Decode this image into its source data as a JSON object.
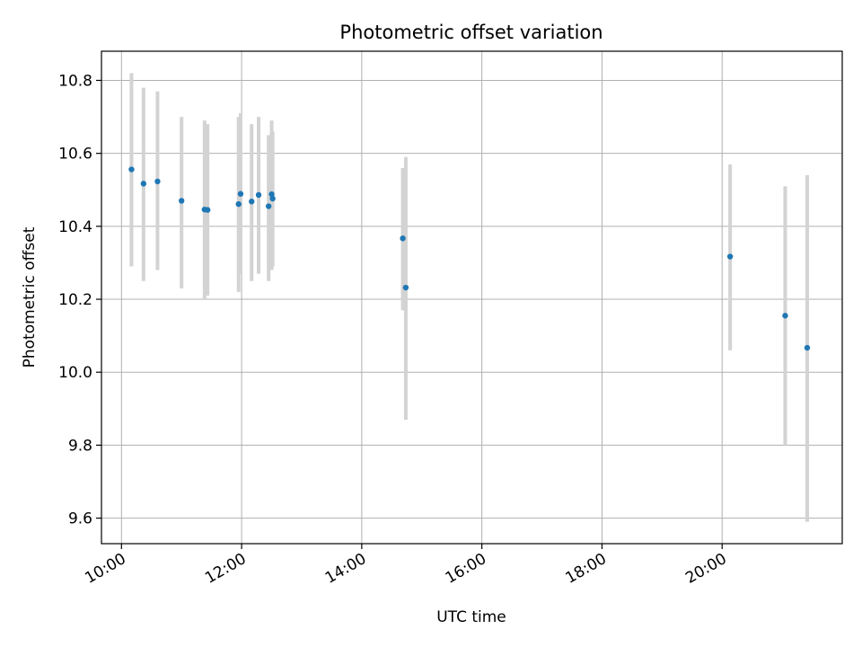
{
  "chart_data": {
    "type": "scatter",
    "title": "Photometric offset variation",
    "xlabel": "UTC time",
    "ylabel": "Photometric offset",
    "x_tick_labels": [
      "10:00",
      "12:00",
      "14:00",
      "16:00",
      "18:00",
      "20:00"
    ],
    "y_tick_labels": [
      "9.6",
      "9.8",
      "10.0",
      "10.2",
      "10.4",
      "10.6",
      "10.8"
    ],
    "xlim": [
      "09:40",
      "22:00"
    ],
    "ylim": [
      9.53,
      10.88
    ],
    "grid": true,
    "series": [
      {
        "color": "#1f77b4",
        "error_bar_color": "#d3d3d3",
        "points": [
          {
            "x": "10:10",
            "y": 10.556,
            "ylo": 10.29,
            "yhi": 10.82
          },
          {
            "x": "10:22",
            "y": 10.517,
            "ylo": 10.25,
            "yhi": 10.78
          },
          {
            "x": "10:36",
            "y": 10.523,
            "ylo": 10.28,
            "yhi": 10.77
          },
          {
            "x": "11:00",
            "y": 10.47,
            "ylo": 10.23,
            "yhi": 10.7
          },
          {
            "x": "11:23",
            "y": 10.446,
            "ylo": 10.2,
            "yhi": 10.69
          },
          {
            "x": "11:26",
            "y": 10.445,
            "ylo": 10.21,
            "yhi": 10.68
          },
          {
            "x": "11:57",
            "y": 10.461,
            "ylo": 10.22,
            "yhi": 10.7
          },
          {
            "x": "11:59",
            "y": 10.489,
            "ylo": 10.27,
            "yhi": 10.71
          },
          {
            "x": "12:10",
            "y": 10.468,
            "ylo": 10.25,
            "yhi": 10.68
          },
          {
            "x": "12:17",
            "y": 10.486,
            "ylo": 10.27,
            "yhi": 10.7
          },
          {
            "x": "12:27",
            "y": 10.455,
            "ylo": 10.25,
            "yhi": 10.65
          },
          {
            "x": "12:30",
            "y": 10.488,
            "ylo": 10.28,
            "yhi": 10.69
          },
          {
            "x": "12:31",
            "y": 10.476,
            "ylo": 10.29,
            "yhi": 10.66
          },
          {
            "x": "14:41",
            "y": 10.367,
            "ylo": 10.17,
            "yhi": 10.56
          },
          {
            "x": "14:44",
            "y": 10.232,
            "ylo": 9.87,
            "yhi": 10.59
          },
          {
            "x": "20:08",
            "y": 10.317,
            "ylo": 10.06,
            "yhi": 10.57
          },
          {
            "x": "21:03",
            "y": 10.155,
            "ylo": 9.8,
            "yhi": 10.51
          },
          {
            "x": "21:25",
            "y": 10.067,
            "ylo": 9.59,
            "yhi": 10.54
          }
        ]
      }
    ]
  }
}
